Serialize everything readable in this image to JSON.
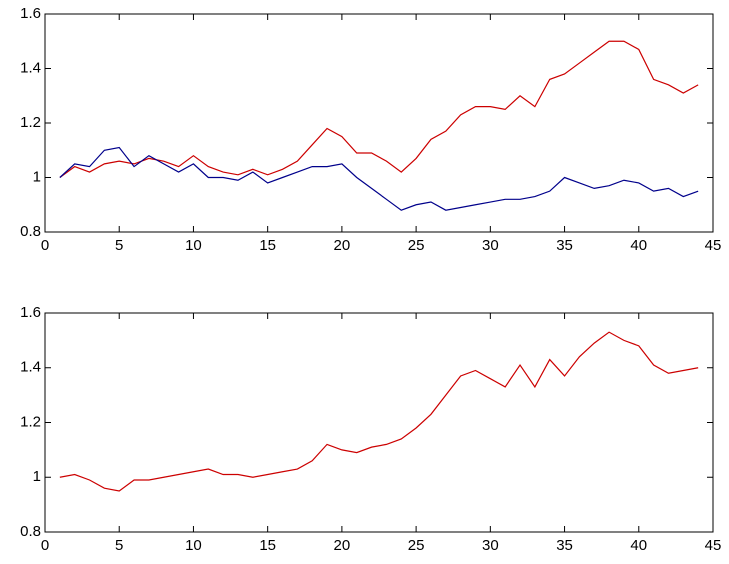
{
  "chart_data": [
    {
      "type": "line",
      "x": [
        1,
        2,
        3,
        4,
        5,
        6,
        7,
        8,
        9,
        10,
        11,
        12,
        13,
        14,
        15,
        16,
        17,
        18,
        19,
        20,
        21,
        22,
        23,
        24,
        25,
        26,
        27,
        28,
        29,
        30,
        31,
        32,
        33,
        34,
        35,
        36,
        37,
        38,
        39,
        40,
        41,
        42,
        43,
        44
      ],
      "series": [
        {
          "color": "#cc0000",
          "values": [
            1.0,
            1.04,
            1.02,
            1.05,
            1.06,
            1.05,
            1.07,
            1.06,
            1.04,
            1.08,
            1.04,
            1.02,
            1.01,
            1.03,
            1.01,
            1.03,
            1.06,
            1.12,
            1.18,
            1.15,
            1.09,
            1.09,
            1.06,
            1.02,
            1.07,
            1.14,
            1.17,
            1.23,
            1.26,
            1.26,
            1.25,
            1.3,
            1.26,
            1.36,
            1.38,
            1.42,
            1.46,
            1.5,
            1.5,
            1.47,
            1.36,
            1.34,
            1.31,
            1.34
          ]
        },
        {
          "color": "#00008b",
          "values": [
            1.0,
            1.05,
            1.04,
            1.1,
            1.11,
            1.04,
            1.08,
            1.05,
            1.02,
            1.05,
            1.0,
            1.0,
            0.99,
            1.02,
            0.98,
            1.0,
            1.02,
            1.04,
            1.04,
            1.05,
            1.0,
            0.96,
            0.92,
            0.88,
            0.9,
            0.91,
            0.88,
            0.89,
            0.9,
            0.91,
            0.92,
            0.92,
            0.93,
            0.95,
            1.0,
            0.98,
            0.96,
            0.97,
            0.99,
            0.98,
            0.95,
            0.96,
            0.93,
            0.95
          ]
        }
      ],
      "xlim": [
        0,
        45
      ],
      "xticks": [
        0,
        5,
        10,
        15,
        20,
        25,
        30,
        35,
        40,
        45
      ],
      "ylim": [
        0.8,
        1.6
      ],
      "yticks": [
        0.8,
        1,
        1.2,
        1.4,
        1.6
      ]
    },
    {
      "type": "line",
      "x": [
        1,
        2,
        3,
        4,
        5,
        6,
        7,
        8,
        9,
        10,
        11,
        12,
        13,
        14,
        15,
        16,
        17,
        18,
        19,
        20,
        21,
        22,
        23,
        24,
        25,
        26,
        27,
        28,
        29,
        30,
        31,
        32,
        33,
        34,
        35,
        36,
        37,
        38,
        39,
        40,
        41,
        42,
        43,
        44
      ],
      "series": [
        {
          "color": "#cc0000",
          "values": [
            1.0,
            1.01,
            0.99,
            0.96,
            0.95,
            0.99,
            0.99,
            1.0,
            1.01,
            1.02,
            1.03,
            1.01,
            1.01,
            1.0,
            1.01,
            1.02,
            1.03,
            1.06,
            1.12,
            1.1,
            1.09,
            1.11,
            1.12,
            1.14,
            1.18,
            1.23,
            1.3,
            1.37,
            1.39,
            1.36,
            1.33,
            1.41,
            1.33,
            1.43,
            1.37,
            1.44,
            1.49,
            1.53,
            1.5,
            1.48,
            1.41,
            1.38,
            1.39,
            1.4
          ]
        }
      ],
      "xlim": [
        0,
        45
      ],
      "xticks": [
        0,
        5,
        10,
        15,
        20,
        25,
        30,
        35,
        40,
        45
      ],
      "ylim": [
        0.8,
        1.6
      ],
      "yticks": [
        0.8,
        1,
        1.2,
        1.4,
        1.6
      ]
    }
  ]
}
